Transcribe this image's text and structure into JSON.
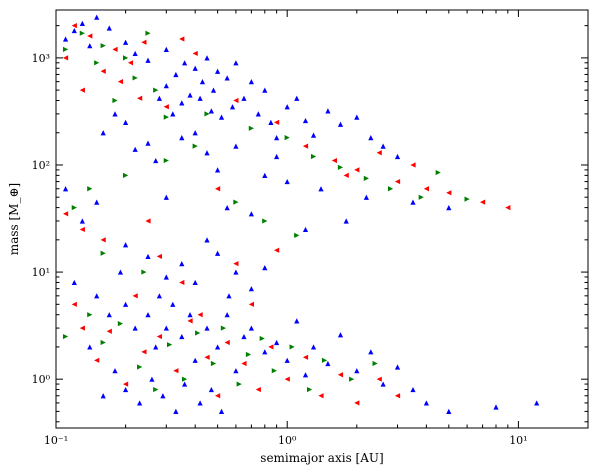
{
  "chart_data": {
    "type": "scatter",
    "title": "",
    "xlabel": "semimajor axis [AU]",
    "ylabel": "mass [M_⊕]",
    "x_scale": "log",
    "y_scale": "log",
    "xlim": [
      0.1,
      20
    ],
    "ylim": [
      0.35,
      2800
    ],
    "grid": false,
    "legend": "none",
    "x_ticks": [
      {
        "value": 0.1,
        "label": "10⁻¹"
      },
      {
        "value": 1,
        "label": "10⁰"
      },
      {
        "value": 10,
        "label": "10¹"
      }
    ],
    "y_ticks": [
      {
        "value": 1,
        "label": "10⁰"
      },
      {
        "value": 10,
        "label": "10¹"
      },
      {
        "value": 100,
        "label": "10²"
      },
      {
        "value": 1000,
        "label": "10³"
      }
    ],
    "series": [
      {
        "color": "#0000ff",
        "marker": "triangle-up",
        "points": [
          [
            0.13,
            2100
          ],
          [
            0.15,
            2400
          ],
          [
            0.12,
            1800
          ],
          [
            0.11,
            1500
          ],
          [
            0.14,
            1300
          ],
          [
            0.17,
            1900
          ],
          [
            0.2,
            1400
          ],
          [
            0.22,
            1100
          ],
          [
            0.25,
            950
          ],
          [
            0.3,
            1200
          ],
          [
            0.33,
            700
          ],
          [
            0.36,
            900
          ],
          [
            0.4,
            800
          ],
          [
            0.43,
            600
          ],
          [
            0.45,
            1000
          ],
          [
            0.5,
            750
          ],
          [
            0.48,
            500
          ],
          [
            0.55,
            650
          ],
          [
            0.6,
            900
          ],
          [
            0.38,
            450
          ],
          [
            0.42,
            420
          ],
          [
            0.35,
            380
          ],
          [
            0.32,
            300
          ],
          [
            0.3,
            550
          ],
          [
            0.28,
            420
          ],
          [
            0.47,
            320
          ],
          [
            0.52,
            280
          ],
          [
            0.58,
            350
          ],
          [
            0.65,
            420
          ],
          [
            0.7,
            600
          ],
          [
            0.75,
            300
          ],
          [
            0.8,
            500
          ],
          [
            0.85,
            250
          ],
          [
            0.9,
            180
          ],
          [
            1.0,
            350
          ],
          [
            1.1,
            420
          ],
          [
            1.2,
            260
          ],
          [
            1.3,
            190
          ],
          [
            1.5,
            320
          ],
          [
            1.7,
            240
          ],
          [
            2.0,
            280
          ],
          [
            2.3,
            180
          ],
          [
            2.6,
            150
          ],
          [
            3.0,
            120
          ],
          [
            0.9,
            120
          ],
          [
            0.6,
            150
          ],
          [
            0.45,
            130
          ],
          [
            0.4,
            200
          ],
          [
            0.35,
            180
          ],
          [
            0.25,
            160
          ],
          [
            0.2,
            250
          ],
          [
            0.18,
            300
          ],
          [
            0.16,
            200
          ],
          [
            0.22,
            140
          ],
          [
            0.27,
            110
          ],
          [
            0.5,
            90
          ],
          [
            0.8,
            80
          ],
          [
            1.0,
            70
          ],
          [
            1.4,
            60
          ],
          [
            2.2,
            50
          ],
          [
            3.5,
            45
          ],
          [
            5.0,
            40
          ],
          [
            0.7,
            35
          ],
          [
            0.55,
            40
          ],
          [
            0.3,
            50
          ],
          [
            0.15,
            45
          ],
          [
            0.11,
            60
          ],
          [
            0.13,
            30
          ],
          [
            1.8,
            30
          ],
          [
            1.2,
            25
          ],
          [
            0.15,
            6
          ],
          [
            0.17,
            4
          ],
          [
            0.2,
            5
          ],
          [
            0.22,
            3
          ],
          [
            0.25,
            4
          ],
          [
            0.27,
            2
          ],
          [
            0.3,
            3
          ],
          [
            0.32,
            5
          ],
          [
            0.35,
            2.5
          ],
          [
            0.38,
            4
          ],
          [
            0.4,
            1.5
          ],
          [
            0.45,
            3
          ],
          [
            0.5,
            2
          ],
          [
            0.55,
            4
          ],
          [
            0.6,
            1.2
          ],
          [
            0.65,
            2.5
          ],
          [
            0.7,
            3
          ],
          [
            0.8,
            1.8
          ],
          [
            0.9,
            2.2
          ],
          [
            1.0,
            1.5
          ],
          [
            1.1,
            3.5
          ],
          [
            1.2,
            1.1
          ],
          [
            1.3,
            2
          ],
          [
            1.5,
            1.4
          ],
          [
            1.7,
            2.6
          ],
          [
            2.0,
            1.2
          ],
          [
            2.3,
            1.8
          ],
          [
            2.6,
            0.9
          ],
          [
            3.0,
            1.3
          ],
          [
            3.5,
            0.8
          ],
          [
            0.18,
            1.2
          ],
          [
            0.2,
            0.8
          ],
          [
            0.23,
            0.6
          ],
          [
            0.26,
            1.0
          ],
          [
            0.29,
            0.7
          ],
          [
            0.33,
            0.5
          ],
          [
            0.36,
            0.9
          ],
          [
            0.42,
            0.6
          ],
          [
            0.47,
            0.8
          ],
          [
            0.52,
            0.5
          ],
          [
            0.3,
            9
          ],
          [
            0.35,
            12
          ],
          [
            0.4,
            8
          ],
          [
            0.5,
            15
          ],
          [
            0.6,
            10
          ],
          [
            0.7,
            7
          ],
          [
            0.8,
            11
          ],
          [
            0.25,
            14
          ],
          [
            0.2,
            18
          ],
          [
            0.45,
            20
          ],
          [
            4.0,
            0.6
          ],
          [
            5.0,
            0.5
          ],
          [
            8.0,
            0.55
          ],
          [
            12.0,
            0.6
          ],
          [
            0.12,
            8
          ],
          [
            0.14,
            2
          ],
          [
            0.16,
            0.7
          ],
          [
            0.19,
            10
          ],
          [
            0.28,
            6
          ],
          [
            0.56,
            6
          ]
        ]
      },
      {
        "color": "#ff0000",
        "marker": "triangle-left",
        "points": [
          [
            0.12,
            2000
          ],
          [
            0.14,
            1600
          ],
          [
            0.18,
            1200
          ],
          [
            0.21,
            900
          ],
          [
            0.24,
            1400
          ],
          [
            0.11,
            1000
          ],
          [
            0.16,
            750
          ],
          [
            0.19,
            600
          ],
          [
            0.13,
            500
          ],
          [
            0.23,
            420
          ],
          [
            0.3,
            350
          ],
          [
            0.35,
            1500
          ],
          [
            0.4,
            1100
          ],
          [
            0.6,
            400
          ],
          [
            0.9,
            250
          ],
          [
            1.2,
            150
          ],
          [
            1.6,
            110
          ],
          [
            2.0,
            90
          ],
          [
            3.0,
            70
          ],
          [
            4.0,
            60
          ],
          [
            5.0,
            55
          ],
          [
            7.0,
            45
          ],
          [
            9.0,
            40
          ],
          [
            3.5,
            100
          ],
          [
            2.5,
            130
          ],
          [
            1.8,
            80
          ],
          [
            0.5,
            60
          ],
          [
            0.25,
            30
          ],
          [
            0.13,
            25
          ],
          [
            0.11,
            35
          ],
          [
            0.12,
            5
          ],
          [
            0.13,
            3
          ],
          [
            0.15,
            1.5
          ],
          [
            0.17,
            2.8
          ],
          [
            0.2,
            0.9
          ],
          [
            0.24,
            1.8
          ],
          [
            0.28,
            2.5
          ],
          [
            0.33,
            1.2
          ],
          [
            0.38,
            3.5
          ],
          [
            0.45,
            1.6
          ],
          [
            0.5,
            0.7
          ],
          [
            0.55,
            2.2
          ],
          [
            0.65,
            1.4
          ],
          [
            0.75,
            0.8
          ],
          [
            0.85,
            2.0
          ],
          [
            1.0,
            1.0
          ],
          [
            1.2,
            1.6
          ],
          [
            1.4,
            0.7
          ],
          [
            1.7,
            1.1
          ],
          [
            2.0,
            0.6
          ],
          [
            2.5,
            1.0
          ],
          [
            3.0,
            0.7
          ],
          [
            0.22,
            6
          ],
          [
            0.35,
            8
          ],
          [
            0.6,
            12
          ],
          [
            0.9,
            16
          ],
          [
            0.16,
            20
          ],
          [
            0.28,
            14
          ],
          [
            0.42,
            4
          ],
          [
            0.7,
            5
          ]
        ]
      },
      {
        "color": "#008000",
        "marker": "triangle-right",
        "points": [
          [
            0.13,
            1700
          ],
          [
            0.16,
            1300
          ],
          [
            0.2,
            1000
          ],
          [
            0.25,
            1700
          ],
          [
            0.11,
            1200
          ],
          [
            0.15,
            900
          ],
          [
            0.22,
            650
          ],
          [
            0.27,
            500
          ],
          [
            0.18,
            400
          ],
          [
            0.3,
            280
          ],
          [
            0.45,
            300
          ],
          [
            0.7,
            220
          ],
          [
            1.0,
            180
          ],
          [
            1.3,
            120
          ],
          [
            1.7,
            95
          ],
          [
            2.2,
            75
          ],
          [
            2.8,
            60
          ],
          [
            3.8,
            50
          ],
          [
            4.5,
            85
          ],
          [
            6.0,
            48
          ],
          [
            0.4,
            150
          ],
          [
            0.3,
            110
          ],
          [
            0.2,
            80
          ],
          [
            0.14,
            60
          ],
          [
            0.12,
            40
          ],
          [
            0.6,
            45
          ],
          [
            0.8,
            30
          ],
          [
            1.1,
            22
          ],
          [
            0.16,
            15
          ],
          [
            0.24,
            10
          ],
          [
            0.14,
            4
          ],
          [
            0.16,
            2.2
          ],
          [
            0.19,
            3.3
          ],
          [
            0.23,
            1.3
          ],
          [
            0.27,
            0.8
          ],
          [
            0.31,
            2.1
          ],
          [
            0.36,
            1.0
          ],
          [
            0.41,
            2.7
          ],
          [
            0.48,
            1.4
          ],
          [
            0.53,
            3.0
          ],
          [
            0.62,
            0.9
          ],
          [
            0.68,
            1.7
          ],
          [
            0.78,
            2.4
          ],
          [
            0.88,
            1.2
          ],
          [
            1.05,
            2.0
          ],
          [
            1.25,
            0.8
          ],
          [
            1.45,
            1.5
          ],
          [
            1.9,
            1.0
          ],
          [
            2.4,
            1.4
          ],
          [
            0.11,
            2.5
          ]
        ]
      }
    ]
  }
}
